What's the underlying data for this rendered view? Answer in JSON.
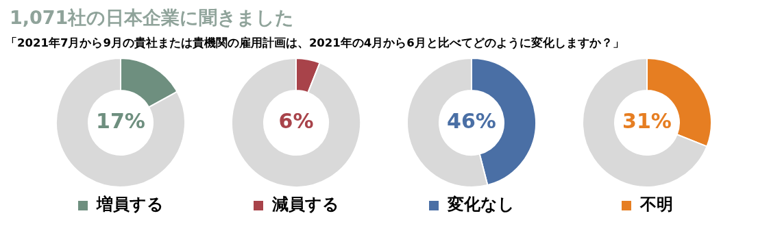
{
  "chart_data": [
    {
      "type": "other",
      "title": "1,071社の日本企業に聞きました",
      "subtitle": "「2021年7月から9月の貴社または貴機関の雇用計画は、2021年の4月から6月と比べてどのように変化しますか？」"
    },
    {
      "type": "donut",
      "categories": [
        "増員する",
        null
      ],
      "values": [
        17,
        83
      ],
      "colors": [
        "#6e8f7f",
        "#d9d9d9"
      ],
      "value_labels": [
        "17%",
        null
      ],
      "legend": "bottom"
    },
    {
      "type": "donut",
      "categories": [
        "減員する",
        null
      ],
      "values": [
        6,
        94
      ],
      "colors": [
        "#a8434a",
        "#d9d9d9"
      ],
      "value_labels": [
        "6%",
        null
      ],
      "legend": "bottom"
    },
    {
      "type": "donut",
      "categories": [
        "変化なし",
        null
      ],
      "values": [
        46,
        54
      ],
      "colors": [
        "#4a6fa5",
        "#d9d9d9"
      ],
      "value_labels": [
        "46%",
        null
      ],
      "legend": "bottom"
    },
    {
      "type": "donut",
      "categories": [
        "不明",
        null
      ],
      "values": [
        31,
        69
      ],
      "colors": [
        "#e67e22",
        "#d9d9d9"
      ],
      "value_labels": [
        "31%",
        null
      ],
      "legend": "bottom"
    }
  ]
}
